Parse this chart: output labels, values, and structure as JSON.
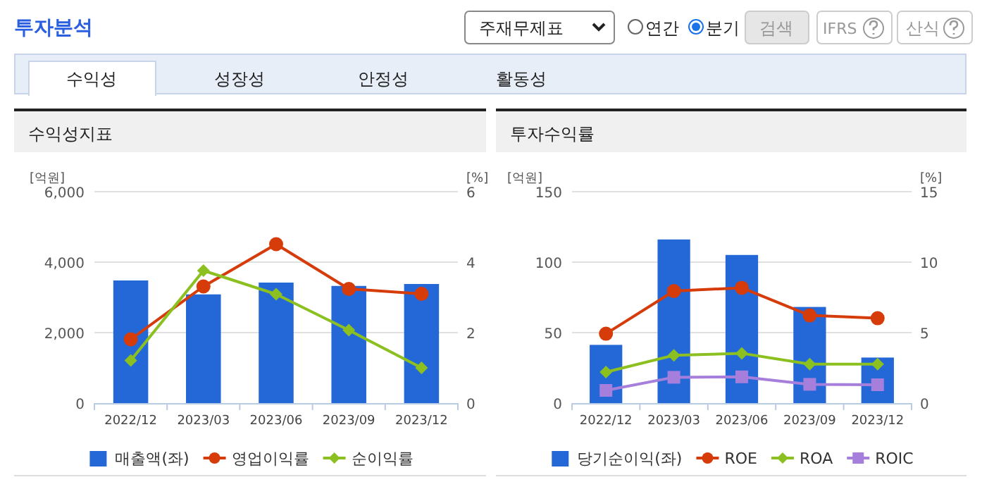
{
  "chart_data": [
    {
      "type": "other",
      "title": "투자분석",
      "annotations": [
        "주재무제표",
        "연간",
        "분기",
        "검색",
        "IFRS",
        "산식",
        "수익성",
        "성장성",
        "안정성",
        "활동성"
      ]
    },
    {
      "type": "bar",
      "title": "수익성지표",
      "ylabel": "[억원]",
      "y2label": "[%]",
      "categories": [
        "2022/12",
        "2023/03",
        "2023/06",
        "2023/09",
        "2023/12"
      ],
      "ylim": [
        0,
        6000
      ],
      "yticks": [
        {
          "value": 0,
          "label": "0"
        },
        {
          "value": 2000,
          "label": "2,000"
        },
        {
          "value": 4000,
          "label": "4,000"
        },
        {
          "value": 6000,
          "label": "6,000"
        }
      ],
      "y2lim": [
        0,
        6
      ],
      "y2ticks": [
        0,
        2,
        4,
        6
      ],
      "grid": "y",
      "legend": "bottom",
      "series": [
        {
          "name": "매출액(좌)",
          "type": "bar",
          "color": "#2468d8",
          "values": [
            3480,
            3085,
            3420,
            3325,
            3380
          ]
        },
        {
          "name": "영업이익률",
          "type": "line",
          "axis": "y2",
          "marker": "circle",
          "color": "#d63b0a",
          "values": [
            1.81,
            3.31,
            4.51,
            3.24,
            3.1
          ]
        },
        {
          "name": "순이익률",
          "type": "line",
          "axis": "y2",
          "marker": "diamond",
          "color": "#8cc021",
          "values": [
            1.21,
            3.76,
            3.09,
            2.07,
            1.0
          ]
        }
      ]
    },
    {
      "type": "bar",
      "title": "투자수익률",
      "ylabel": "[억원]",
      "y2label": "[%]",
      "categories": [
        "2022/12",
        "2023/03",
        "2023/06",
        "2023/09",
        "2023/12"
      ],
      "ylim": [
        0,
        150
      ],
      "yticks": [
        0,
        50,
        100,
        150
      ],
      "y2lim": [
        0,
        15
      ],
      "y2ticks": [
        0,
        5,
        10,
        15
      ],
      "grid": "y",
      "legend": "bottom",
      "series": [
        {
          "name": "당기순이익(좌)",
          "type": "bar",
          "color": "#2468d8",
          "values": [
            41.3,
            116.1,
            105.1,
            68.2,
            32.3
          ]
        },
        {
          "name": "ROE",
          "type": "line",
          "axis": "y2",
          "marker": "circle",
          "color": "#d63b0a",
          "values": [
            4.92,
            7.95,
            8.18,
            6.22,
            6.02
          ]
        },
        {
          "name": "ROA",
          "type": "line",
          "axis": "y2",
          "marker": "diamond",
          "color": "#8cc021",
          "values": [
            2.2,
            3.39,
            3.53,
            2.76,
            2.76
          ]
        },
        {
          "name": "ROIC",
          "type": "line",
          "axis": "y2",
          "marker": "square",
          "color": "#a57fdb",
          "values": [
            0.9,
            1.83,
            1.86,
            1.33,
            1.3
          ]
        }
      ]
    }
  ]
}
